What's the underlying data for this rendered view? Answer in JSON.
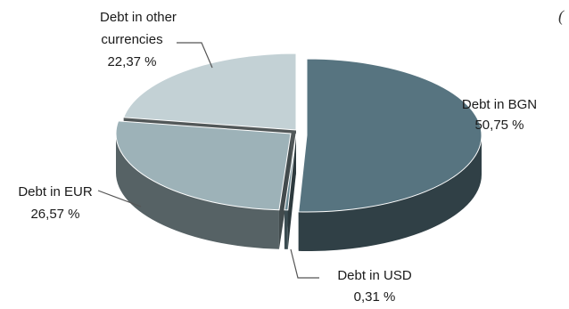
{
  "corner_mark": "(",
  "chart_data": {
    "type": "pie",
    "title": "",
    "slices": [
      {
        "label": "Debt in BGN",
        "value_label": "50,75 %",
        "value": 50.75,
        "color": "#577480"
      },
      {
        "label": "Debt in USD",
        "value_label": "0,31 %",
        "value": 0.31,
        "color": "#6b8a93"
      },
      {
        "label": "Debt in EUR",
        "value_label": "26,57 %",
        "value": 26.57,
        "color": "#9db2b8"
      },
      {
        "label": "Debt in other currencies",
        "label_lines": [
          "Debt in other",
          "currencies"
        ],
        "value_label": "22,37 %",
        "value": 22.37,
        "color": "#c3d1d5"
      }
    ]
  }
}
